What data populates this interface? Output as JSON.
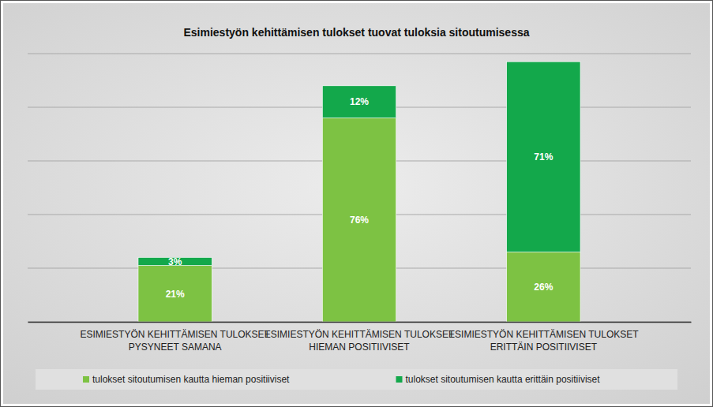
{
  "chart_data": {
    "type": "bar",
    "title": "Esimiestyön kehittämisen tulokset tuovat tuloksia sitoutumisessa",
    "categories": [
      "ESIMIESTYÖN KEHITTÄMISEN TULOKSET PYSYNEET SAMANA",
      "ESIMIESTYÖN KEHITTÄMISEN TULOKSET HIEMAN POSITIIVISET",
      "ESIMIESTYÖN KEHITTÄMISEN TULOKSET ERITTÄIN POSITIIVISET"
    ],
    "series": [
      {
        "name": "tulokset sitoutumisen kautta hieman positiiviset",
        "color": "#7dc243",
        "values": [
          21,
          76,
          26
        ],
        "value_labels": [
          "21%",
          "76%",
          "26%"
        ]
      },
      {
        "name": "tulokset sitoutumisen kautta erittäin positiiviset",
        "color": "#13a84b",
        "values": [
          3,
          12,
          71
        ],
        "value_labels": [
          "3%",
          "12%",
          "71%"
        ]
      }
    ],
    "stacked": true,
    "data_labels": true,
    "ylim": [
      0,
      100
    ],
    "yticks": [
      0,
      20,
      40,
      60,
      80,
      100
    ],
    "grid": true,
    "tick_labels": false,
    "legend": "bottom"
  }
}
